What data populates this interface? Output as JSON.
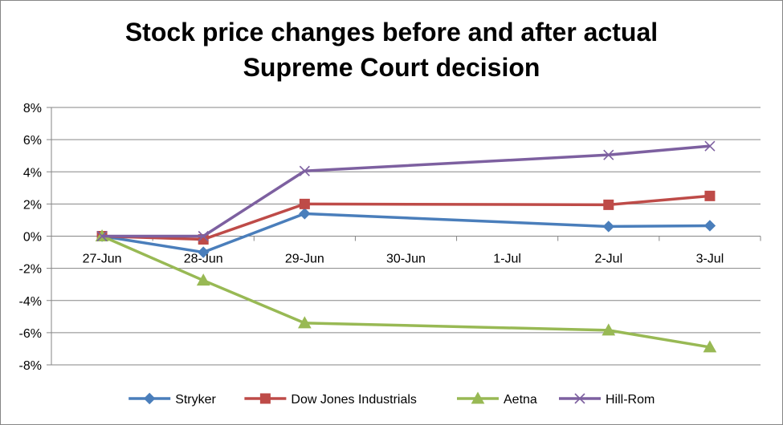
{
  "chart_data": {
    "type": "line",
    "title_lines": [
      "Stock price changes before and after actual",
      "Supreme Court decision"
    ],
    "categories": [
      "27-Jun",
      "28-Jun",
      "29-Jun",
      "30-Jun",
      "1-Jul",
      "2-Jul",
      "3-Jul"
    ],
    "y_ticks": [
      "8%",
      "6%",
      "4%",
      "2%",
      "0%",
      "-2%",
      "-4%",
      "-6%",
      "-8%"
    ],
    "ylim": [
      -8,
      8
    ],
    "y_unit": "%",
    "grid": "horizontal",
    "legend_position": "bottom",
    "series": [
      {
        "name": "Stryker",
        "color": "#4a7ebb",
        "marker": "diamond",
        "points": [
          {
            "x": "27-Jun",
            "y": 0
          },
          {
            "x": "28-Jun",
            "y": -1.0
          },
          {
            "x": "29-Jun",
            "y": 1.4
          },
          {
            "x": "2-Jul",
            "y": 0.6
          },
          {
            "x": "3-Jul",
            "y": 0.65
          }
        ]
      },
      {
        "name": "Dow Jones Industrials",
        "color": "#be4b48",
        "marker": "square",
        "points": [
          {
            "x": "27-Jun",
            "y": 0
          },
          {
            "x": "28-Jun",
            "y": -0.2
          },
          {
            "x": "29-Jun",
            "y": 2.0
          },
          {
            "x": "2-Jul",
            "y": 1.95
          },
          {
            "x": "3-Jul",
            "y": 2.5
          }
        ]
      },
      {
        "name": "Aetna",
        "color": "#98b954",
        "marker": "triangle",
        "points": [
          {
            "x": "27-Jun",
            "y": 0
          },
          {
            "x": "28-Jun",
            "y": -2.75
          },
          {
            "x": "29-Jun",
            "y": -5.4
          },
          {
            "x": "2-Jul",
            "y": -5.85
          },
          {
            "x": "3-Jul",
            "y": -6.9
          }
        ]
      },
      {
        "name": "Hill-Rom",
        "color": "#7d60a0",
        "marker": "x",
        "points": [
          {
            "x": "27-Jun",
            "y": 0
          },
          {
            "x": "28-Jun",
            "y": 0.0
          },
          {
            "x": "29-Jun",
            "y": 4.05
          },
          {
            "x": "2-Jul",
            "y": 5.05
          },
          {
            "x": "3-Jul",
            "y": 5.6
          }
        ]
      }
    ]
  }
}
